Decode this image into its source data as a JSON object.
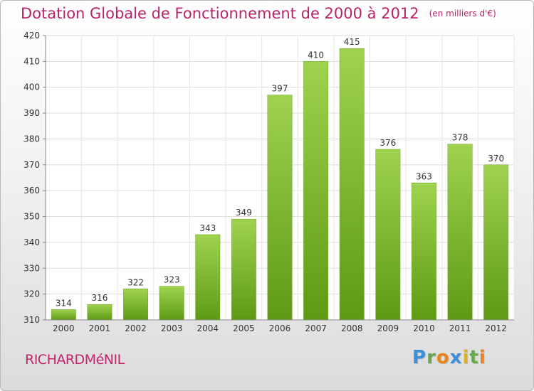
{
  "title": "Dotation Globale de Fonctionnement de 2000 à 2012",
  "subtitle": "(en milliers d'€)",
  "commune": "RICHARDMéNIL",
  "logo": {
    "letters": [
      "P",
      "r",
      "o",
      "x",
      "i",
      "t",
      "i"
    ],
    "colors": [
      "#3a8fd6",
      "#6aa84f",
      "#e8841b",
      "#3a8fd6",
      "#d9b21c",
      "#6aa84f",
      "#e8841b"
    ]
  },
  "chart_data": {
    "type": "bar",
    "categories": [
      "2000",
      "2001",
      "2002",
      "2003",
      "2004",
      "2005",
      "2006",
      "2007",
      "2008",
      "2009",
      "2010",
      "2011",
      "2012"
    ],
    "values": [
      314,
      316,
      322,
      323,
      343,
      349,
      397,
      410,
      415,
      376,
      363,
      378,
      370
    ],
    "ylim": [
      310,
      420
    ],
    "yticks": [
      310,
      320,
      330,
      340,
      350,
      360,
      370,
      380,
      390,
      400,
      410,
      420
    ],
    "grid": true,
    "bar_color": "#7ab82e"
  }
}
